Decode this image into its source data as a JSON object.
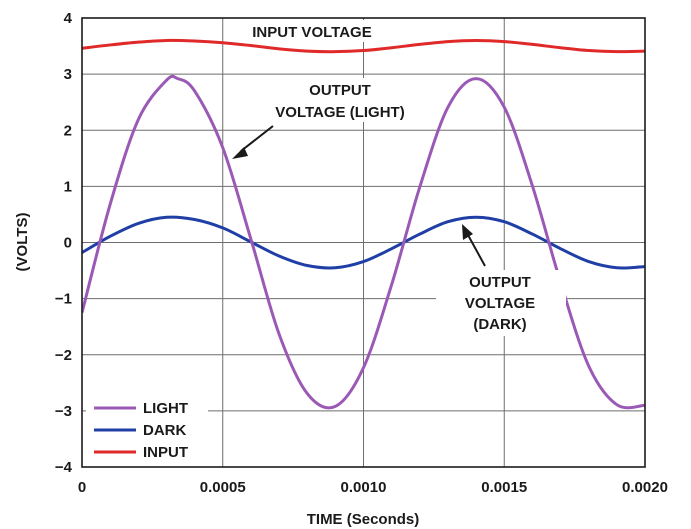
{
  "chart_data": {
    "type": "line",
    "xlabel": "TIME (Seconds)",
    "ylabel": "(VOLTS)",
    "xlim": [
      0,
      0.002
    ],
    "ylim": [
      -4,
      4
    ],
    "x_ticks": [
      0,
      0.0005,
      0.001,
      0.0015,
      0.002
    ],
    "x_tick_labels": [
      "0",
      "0.0005",
      "0.0010",
      "0.0015",
      "0.0020"
    ],
    "y_ticks": [
      -4,
      -3,
      -2,
      -1,
      0,
      1,
      2,
      3,
      4
    ],
    "y_tick_labels": [
      "−4",
      "−3",
      "−2",
      "−1",
      "0",
      "1",
      "2",
      "3",
      "4"
    ],
    "grid": true,
    "legend_position": "bottom-left",
    "series": [
      {
        "name": "LIGHT",
        "color": "#9b59b6",
        "x": [
          0,
          0.0001,
          0.0002,
          0.0003,
          0.00034,
          0.0004,
          0.0005,
          0.0006,
          0.0007,
          0.0008,
          0.0009,
          0.001,
          0.0011,
          0.0012,
          0.0013,
          0.0014,
          0.0015,
          0.0016,
          0.0017,
          0.0018,
          0.0019,
          0.002
        ],
        "y": [
          -1.25,
          0.68,
          2.19,
          2.89,
          2.92,
          2.7,
          1.69,
          0.06,
          -1.63,
          -2.69,
          -2.92,
          -2.23,
          -0.75,
          0.99,
          2.41,
          2.92,
          2.41,
          1.01,
          -0.71,
          -2.2,
          -2.89,
          -2.9
        ]
      },
      {
        "name": "DARK",
        "color": "#1f3fa6",
        "x": [
          0,
          0.0001,
          0.0002,
          0.0003,
          0.0004,
          0.0005,
          0.0006,
          0.0007,
          0.0008,
          0.0009,
          0.001,
          0.0011,
          0.0012,
          0.0013,
          0.0014,
          0.0015,
          0.0016,
          0.0017,
          0.0018,
          0.0019,
          0.002
        ],
        "y": [
          -0.18,
          0.11,
          0.34,
          0.45,
          0.41,
          0.26,
          0.01,
          -0.24,
          -0.41,
          -0.45,
          -0.34,
          -0.11,
          0.15,
          0.37,
          0.45,
          0.37,
          0.15,
          -0.11,
          -0.34,
          -0.45,
          -0.43
        ]
      },
      {
        "name": "INPUT",
        "color": "#e02a2a",
        "x": [
          0,
          0.0001,
          0.0002,
          0.0003,
          0.0004,
          0.0005,
          0.0006,
          0.0007,
          0.0008,
          0.0009,
          0.001,
          0.0011,
          0.0012,
          0.0013,
          0.0014,
          0.0015,
          0.0016,
          0.0017,
          0.0018,
          0.0019,
          0.002
        ],
        "y": [
          3.46,
          3.52,
          3.57,
          3.6,
          3.59,
          3.56,
          3.51,
          3.45,
          3.41,
          3.4,
          3.42,
          3.47,
          3.53,
          3.58,
          3.6,
          3.58,
          3.53,
          3.47,
          3.42,
          3.4,
          3.41
        ]
      }
    ],
    "annotations": [
      {
        "lines": [
          "INPUT VOLTAGE"
        ]
      },
      {
        "lines": [
          "OUTPUT",
          "VOLTAGE (LIGHT)"
        ]
      },
      {
        "lines": [
          "OUTPUT",
          "VOLTAGE",
          "(DARK)"
        ]
      }
    ]
  }
}
